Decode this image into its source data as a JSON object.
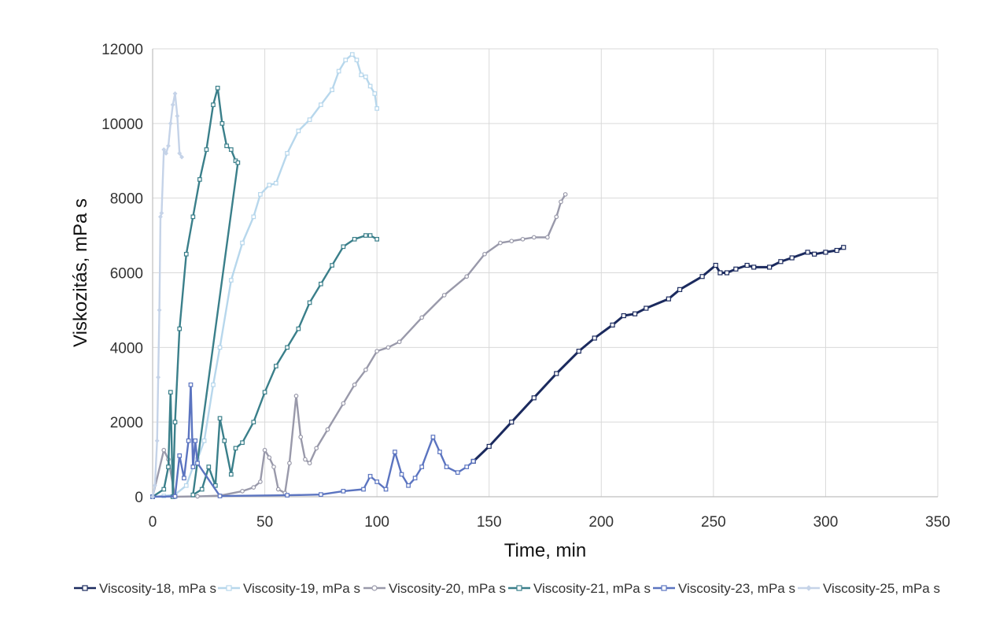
{
  "chart_data": {
    "type": "line",
    "title": "",
    "xlabel": "Time, min",
    "ylabel": "Viskozitás, mPa s",
    "xlim": [
      0,
      350
    ],
    "ylim": [
      0,
      12000
    ],
    "x_ticks": [
      0,
      50,
      100,
      150,
      200,
      250,
      300,
      350
    ],
    "y_ticks": [
      0,
      2000,
      4000,
      6000,
      8000,
      10000,
      12000
    ],
    "grid": true,
    "legend_position": "bottom",
    "series": [
      {
        "name": "Viscosity-18, mPa s",
        "color": "#1b2a5e",
        "marker": "square",
        "points": [
          [
            143,
            950
          ],
          [
            150,
            1350
          ],
          [
            160,
            2000
          ],
          [
            170,
            2650
          ],
          [
            180,
            3300
          ],
          [
            190,
            3900
          ],
          [
            197,
            4250
          ],
          [
            205,
            4600
          ],
          [
            210,
            4850
          ],
          [
            215,
            4900
          ],
          [
            220,
            5050
          ],
          [
            230,
            5300
          ],
          [
            235,
            5550
          ],
          [
            245,
            5900
          ],
          [
            251,
            6200
          ],
          [
            253,
            6000
          ],
          [
            256,
            6000
          ],
          [
            260,
            6100
          ],
          [
            265,
            6200
          ],
          [
            268,
            6150
          ],
          [
            275,
            6150
          ],
          [
            280,
            6300
          ],
          [
            285,
            6400
          ],
          [
            292,
            6550
          ],
          [
            295,
            6500
          ],
          [
            300,
            6550
          ],
          [
            305,
            6600
          ],
          [
            308,
            6680
          ]
        ]
      },
      {
        "name": "Viscosity-19, mPa s",
        "color": "#b7d7ec",
        "marker": "square",
        "points": [
          [
            0,
            0
          ],
          [
            5,
            20
          ],
          [
            10,
            60
          ],
          [
            15,
            300
          ],
          [
            18,
            800
          ],
          [
            20,
            1000
          ],
          [
            23,
            1500
          ],
          [
            27,
            3000
          ],
          [
            30,
            4000
          ],
          [
            35,
            5800
          ],
          [
            40,
            6800
          ],
          [
            45,
            7500
          ],
          [
            48,
            8100
          ],
          [
            52,
            8350
          ],
          [
            55,
            8400
          ],
          [
            60,
            9200
          ],
          [
            65,
            9800
          ],
          [
            70,
            10100
          ],
          [
            75,
            10500
          ],
          [
            80,
            10900
          ],
          [
            83,
            11400
          ],
          [
            86,
            11700
          ],
          [
            89,
            11850
          ],
          [
            91,
            11700
          ],
          [
            93,
            11300
          ],
          [
            95,
            11250
          ],
          [
            97,
            11000
          ],
          [
            99,
            10800
          ],
          [
            100,
            10400
          ]
        ]
      },
      {
        "name": "Viscosity-20, mPa s",
        "color": "#9999aa",
        "marker": "circle",
        "points": [
          [
            0,
            0
          ],
          [
            5,
            1250
          ],
          [
            7,
            1000
          ],
          [
            10,
            0
          ],
          [
            20,
            10
          ],
          [
            30,
            30
          ],
          [
            40,
            150
          ],
          [
            45,
            250
          ],
          [
            48,
            400
          ],
          [
            50,
            1250
          ],
          [
            52,
            1050
          ],
          [
            54,
            800
          ],
          [
            56,
            200
          ],
          [
            59,
            100
          ],
          [
            61,
            900
          ],
          [
            64,
            2700
          ],
          [
            66,
            1600
          ],
          [
            68,
            1000
          ],
          [
            70,
            900
          ],
          [
            73,
            1300
          ],
          [
            78,
            1800
          ],
          [
            85,
            2500
          ],
          [
            90,
            3000
          ],
          [
            95,
            3400
          ],
          [
            100,
            3900
          ],
          [
            105,
            4000
          ],
          [
            110,
            4150
          ],
          [
            120,
            4800
          ],
          [
            130,
            5400
          ],
          [
            140,
            5900
          ],
          [
            148,
            6500
          ],
          [
            155,
            6800
          ],
          [
            160,
            6850
          ],
          [
            165,
            6900
          ],
          [
            170,
            6950
          ],
          [
            176,
            6950
          ],
          [
            180,
            7500
          ],
          [
            182,
            7900
          ],
          [
            184,
            8100
          ]
        ]
      },
      {
        "name": "Viscosity-21, mPa s",
        "color": "#3a7f8a",
        "marker": "square",
        "points": [
          [
            0,
            0
          ],
          [
            5,
            200
          ],
          [
            7,
            800
          ],
          [
            8,
            2800
          ],
          [
            9,
            0
          ],
          [
            10,
            2000
          ],
          [
            12,
            4500
          ],
          [
            15,
            6500
          ],
          [
            18,
            7500
          ],
          [
            21,
            8500
          ],
          [
            24,
            9300
          ],
          [
            27,
            10500
          ],
          [
            29,
            10950
          ],
          [
            31,
            10000
          ],
          [
            33,
            9400
          ],
          [
            35,
            9300
          ],
          [
            37,
            9000
          ],
          [
            38,
            8950
          ],
          [
            18,
            50
          ],
          [
            22,
            200
          ],
          [
            25,
            800
          ],
          [
            28,
            300
          ],
          [
            30,
            2100
          ],
          [
            32,
            1500
          ],
          [
            35,
            600
          ],
          [
            37,
            1300
          ],
          [
            40,
            1450
          ],
          [
            45,
            2000
          ],
          [
            50,
            2800
          ],
          [
            55,
            3500
          ],
          [
            60,
            4000
          ],
          [
            65,
            4500
          ],
          [
            70,
            5200
          ],
          [
            75,
            5700
          ],
          [
            80,
            6200
          ],
          [
            85,
            6700
          ],
          [
            90,
            6900
          ],
          [
            95,
            7000
          ],
          [
            97,
            7000
          ],
          [
            100,
            6900
          ]
        ]
      },
      {
        "name": "Viscosity-23, mPa s",
        "color": "#5b74c0",
        "marker": "square",
        "points": [
          [
            0,
            0
          ],
          [
            10,
            10
          ],
          [
            12,
            1100
          ],
          [
            14,
            500
          ],
          [
            16,
            1500
          ],
          [
            17,
            3000
          ],
          [
            18,
            800
          ],
          [
            19,
            1500
          ],
          [
            20,
            900
          ],
          [
            30,
            20
          ],
          [
            60,
            40
          ],
          [
            75,
            60
          ],
          [
            85,
            150
          ],
          [
            94,
            200
          ],
          [
            97,
            550
          ],
          [
            100,
            400
          ],
          [
            104,
            200
          ],
          [
            108,
            1200
          ],
          [
            111,
            600
          ],
          [
            114,
            300
          ],
          [
            117,
            500
          ],
          [
            120,
            800
          ],
          [
            125,
            1600
          ],
          [
            128,
            1200
          ],
          [
            131,
            800
          ],
          [
            136,
            650
          ],
          [
            140,
            800
          ],
          [
            143,
            950
          ]
        ]
      },
      {
        "name": "Viscosity-25, mPa s",
        "color": "#c5d3e8",
        "marker": "diamond",
        "points": [
          [
            0,
            0
          ],
          [
            1,
            300
          ],
          [
            2,
            1500
          ],
          [
            2.5,
            3200
          ],
          [
            3,
            5000
          ],
          [
            3.5,
            7500
          ],
          [
            4,
            7600
          ],
          [
            5,
            9300
          ],
          [
            6,
            9200
          ],
          [
            7,
            9400
          ],
          [
            8,
            10000
          ],
          [
            9,
            10500
          ],
          [
            10,
            10800
          ],
          [
            11,
            10200
          ],
          [
            12,
            9200
          ],
          [
            13,
            9100
          ]
        ]
      }
    ]
  }
}
